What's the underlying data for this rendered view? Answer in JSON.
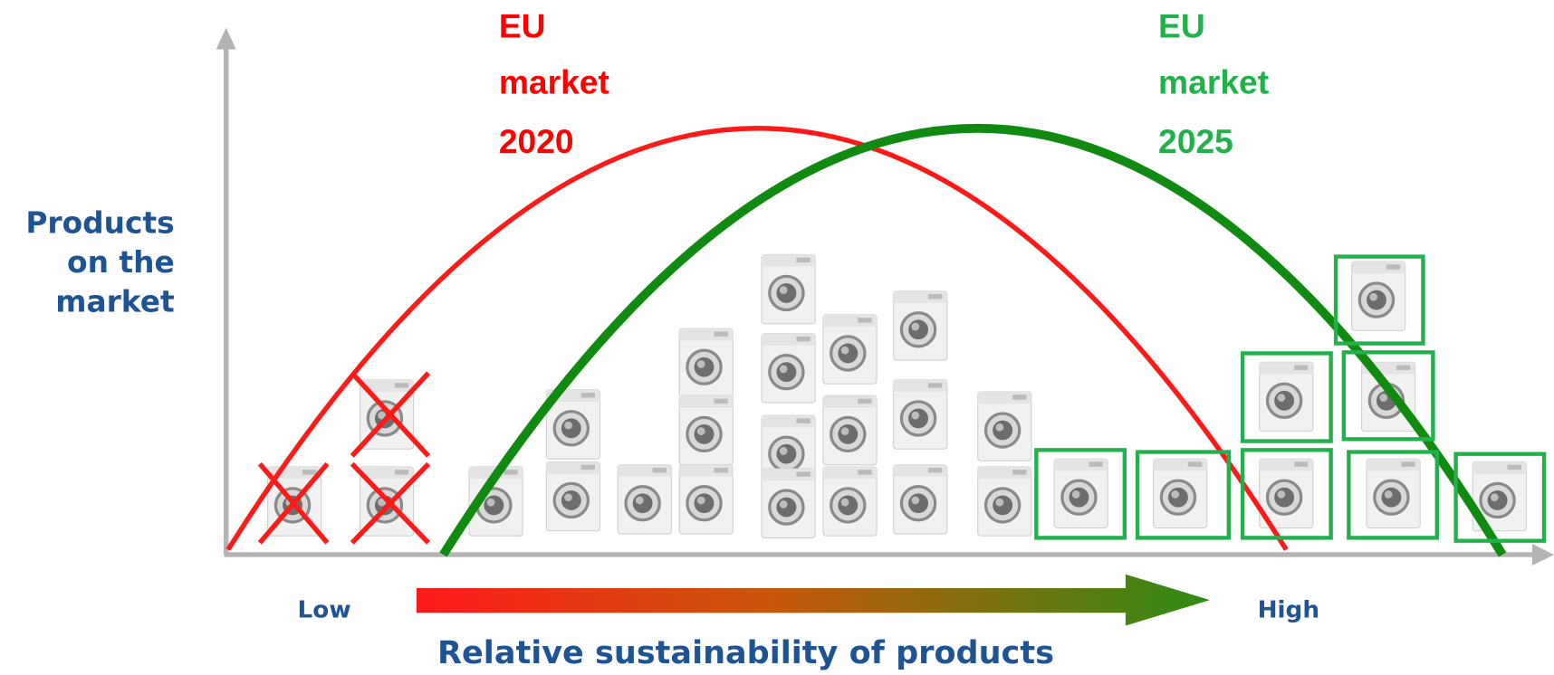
{
  "y_axis_label": {
    "lines": [
      "Products",
      "on the",
      "market"
    ]
  },
  "market_2020": {
    "lines": [
      "EU",
      "market",
      "2020"
    ]
  },
  "market_2025": {
    "lines": [
      "EU",
      "market",
      "2025"
    ]
  },
  "x_axis": {
    "low": "Low",
    "high": "High",
    "title": "Relative sustainability of products"
  }
}
